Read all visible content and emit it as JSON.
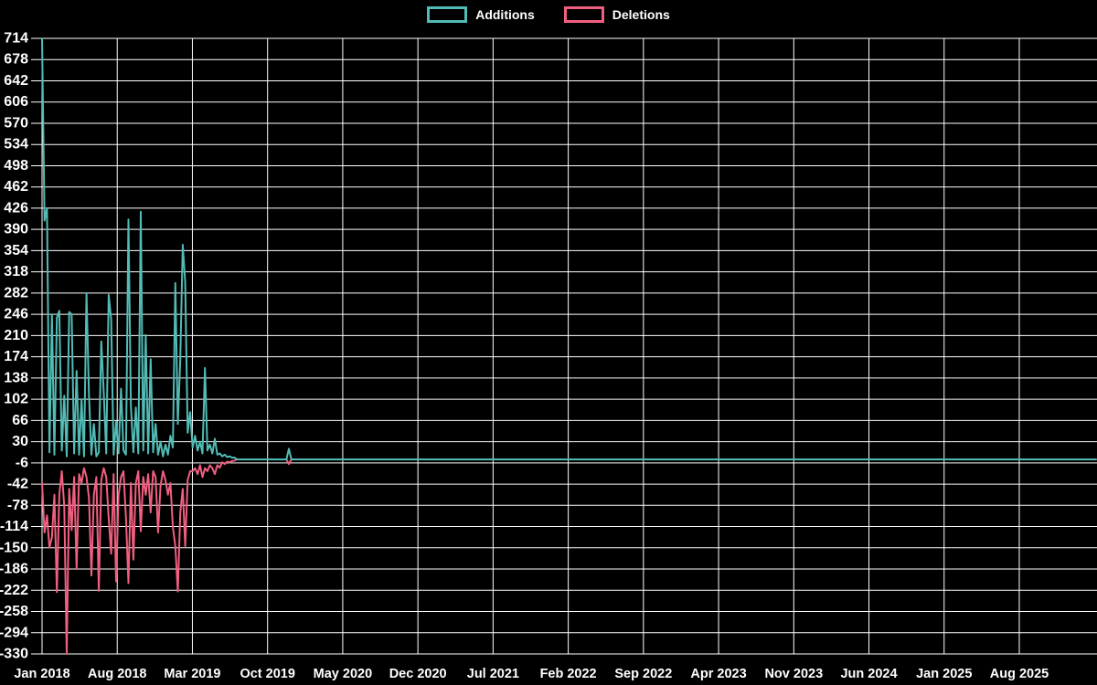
{
  "chart_data": {
    "type": "line",
    "title": "",
    "x_unit": "week",
    "grid": true,
    "legend_position": "top-center",
    "background_color": "#000000",
    "grid_color": "#ffffff",
    "text_color": "#ffffff",
    "y_axis": {
      "min": -330,
      "max": 714,
      "step": 36,
      "tick_labels": [
        "714",
        "678",
        "642",
        "606",
        "570",
        "534",
        "498",
        "462",
        "426",
        "390",
        "354",
        "318",
        "282",
        "246",
        "210",
        "174",
        "138",
        "102",
        "66",
        "30",
        "-6",
        "-42",
        "-78",
        "-114",
        "-150",
        "-186",
        "-222",
        "-258",
        "-294",
        "-330"
      ]
    },
    "x_axis": {
      "tick_labels": [
        "Jan 2018",
        "Aug 2018",
        "Mar 2019",
        "Oct 2019",
        "May 2020",
        "Dec 2020",
        "Jul 2021",
        "Feb 2022",
        "Sep 2022",
        "Apr 2023",
        "Nov 2023",
        "Jun 2024",
        "Jan 2025",
        "Aug 2025"
      ],
      "months_between_ticks": 7
    },
    "total_weeks": 428,
    "note": "weekly additions/deletions; all weeks after index 105 are zero",
    "series": [
      {
        "name": "Deletions",
        "color": "#f15f80",
        "weekly_values": [
          -40,
          -124,
          -95,
          -150,
          -132,
          -60,
          -225,
          -60,
          -20,
          -80,
          -330,
          -50,
          -120,
          -30,
          -186,
          -25,
          -40,
          -15,
          -30,
          -65,
          -197,
          -60,
          -30,
          -223,
          -35,
          -15,
          -30,
          -100,
          -160,
          -25,
          -207,
          -60,
          -30,
          -20,
          -100,
          -210,
          -40,
          -170,
          -40,
          -20,
          -122,
          -30,
          -60,
          -25,
          -90,
          -20,
          -30,
          -124,
          -45,
          -20,
          -35,
          -60,
          -40,
          -115,
          -147,
          -224,
          -90,
          -50,
          -147,
          -35,
          -20,
          -20,
          -15,
          -25,
          -10,
          -30,
          -15,
          -20,
          -10,
          -15,
          -25,
          -10,
          -14,
          -5,
          -8,
          -4,
          -5,
          -3,
          -2,
          0,
          0,
          0,
          0,
          0,
          0,
          0,
          0,
          0,
          0,
          0,
          0,
          0,
          0,
          0,
          0,
          0,
          0,
          0,
          0,
          0,
          -8,
          0,
          0,
          0,
          0,
          0
        ]
      },
      {
        "name": "Additions",
        "color": "#52bbb5",
        "weekly_values": [
          714,
          405,
          426,
          12,
          246,
          8,
          240,
          252,
          15,
          108,
          5,
          250,
          246,
          10,
          150,
          8,
          102,
          5,
          282,
          110,
          8,
          60,
          5,
          12,
          200,
          113,
          10,
          279,
          237,
          8,
          64,
          10,
          120,
          15,
          8,
          407,
          90,
          12,
          88,
          10,
          420,
          15,
          211,
          10,
          170,
          12,
          60,
          8,
          30,
          5,
          25,
          8,
          40,
          20,
          299,
          60,
          170,
          364,
          300,
          45,
          80,
          20,
          40,
          15,
          30,
          10,
          155,
          15,
          25,
          10,
          35,
          8,
          10,
          5,
          8,
          4,
          5,
          3,
          3,
          0,
          0,
          0,
          0,
          0,
          0,
          0,
          0,
          0,
          0,
          0,
          0,
          0,
          0,
          0,
          0,
          0,
          0,
          0,
          0,
          0,
          18,
          0,
          0,
          0,
          0,
          0
        ]
      }
    ]
  },
  "legend": {
    "additions_label": "Additions",
    "deletions_label": "Deletions"
  }
}
